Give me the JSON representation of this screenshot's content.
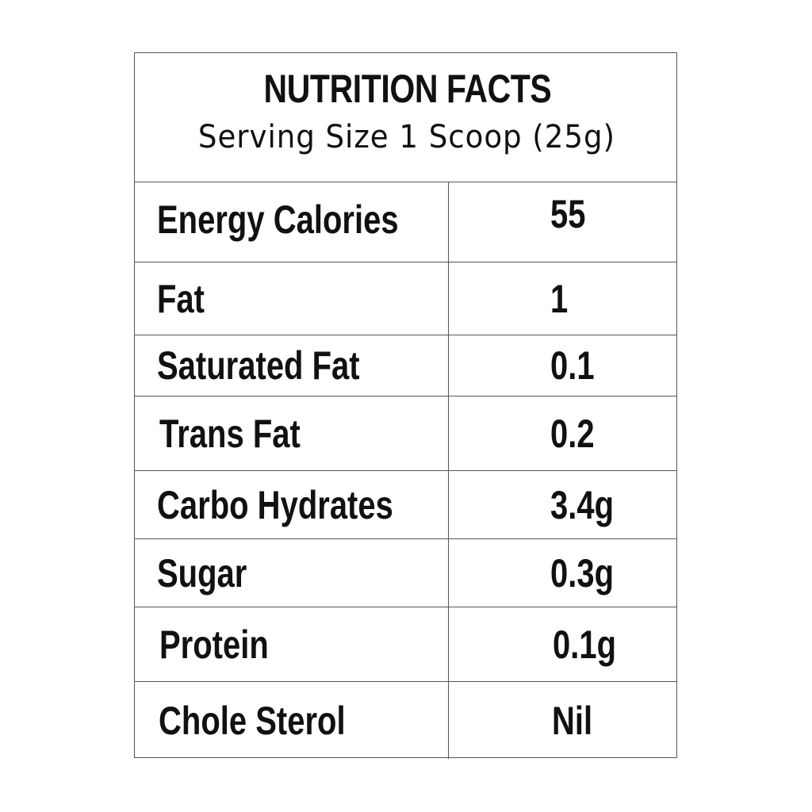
{
  "header": {
    "title": "NUTRITION FACTS",
    "serving": "Serving Size 1  Scoop (25g)"
  },
  "rows": [
    {
      "name": "Energy Calories",
      "value": "55"
    },
    {
      "name": "Fat",
      "value": "1"
    },
    {
      "name": "Saturated Fat",
      "value": "0.1"
    },
    {
      "name": "Trans Fat",
      "value": "0.2"
    },
    {
      "name": "Carbo  Hydrates",
      "value": "3.4g"
    },
    {
      "name": "Sugar",
      "value": "0.3g"
    },
    {
      "name": "Protein",
      "value": "0.1g"
    },
    {
      "name": "Chole Sterol",
      "value": "Nil"
    }
  ],
  "colors": {
    "text": "#111111",
    "border": "#555555",
    "background": "#ffffff"
  }
}
